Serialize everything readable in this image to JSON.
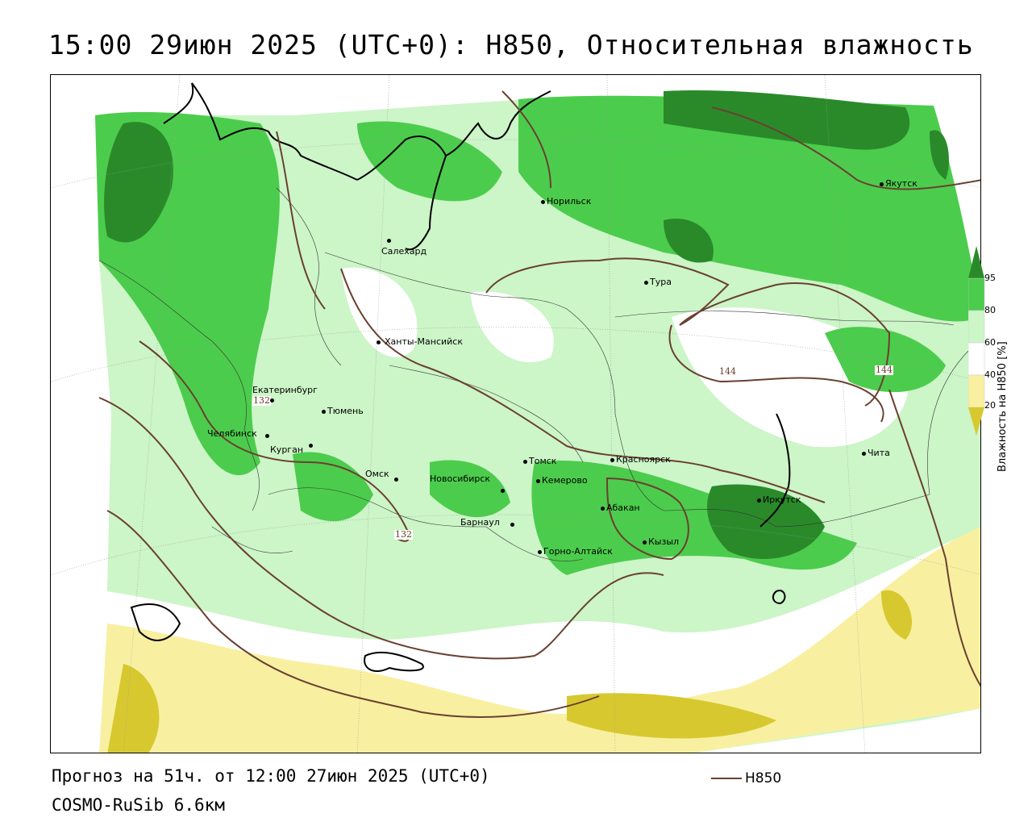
{
  "title": "15:00 29июн 2025 (UTC+0): H850, Относительная влажность",
  "footer": {
    "forecast": "Прогноз на 51ч. от 12:00 27июн 2025 (UTC+0)",
    "model": "COSMO-RuSib 6.6км",
    "line_key": "H850"
  },
  "legend": {
    "title": "Влажность на H850 [%]",
    "ticks": [
      "95",
      "80",
      "60",
      "40",
      "20"
    ],
    "colors": [
      "#2a8a2a",
      "#4ccc4c",
      "#ccf5c8",
      "#ffffff",
      "#f8f0a0",
      "#d8c830"
    ]
  },
  "contour_labels": [
    "132",
    "132",
    "144",
    "144"
  ],
  "cities": [
    {
      "name": "Норильск"
    },
    {
      "name": "Якутск"
    },
    {
      "name": "Салехард"
    },
    {
      "name": "Тура"
    },
    {
      "name": "Ханты-Мансийск"
    },
    {
      "name": "Екатеринбург"
    },
    {
      "name": "Тюмень"
    },
    {
      "name": "Челябинск"
    },
    {
      "name": "Курган"
    },
    {
      "name": "Омск"
    },
    {
      "name": "Новосибирск"
    },
    {
      "name": "Томск"
    },
    {
      "name": "Кемерово"
    },
    {
      "name": "Красноярск"
    },
    {
      "name": "Барнаул"
    },
    {
      "name": "Абакан"
    },
    {
      "name": "Иркутск"
    },
    {
      "name": "Чита"
    },
    {
      "name": "Кызыл"
    },
    {
      "name": "Горно-Алтайск"
    }
  ]
}
